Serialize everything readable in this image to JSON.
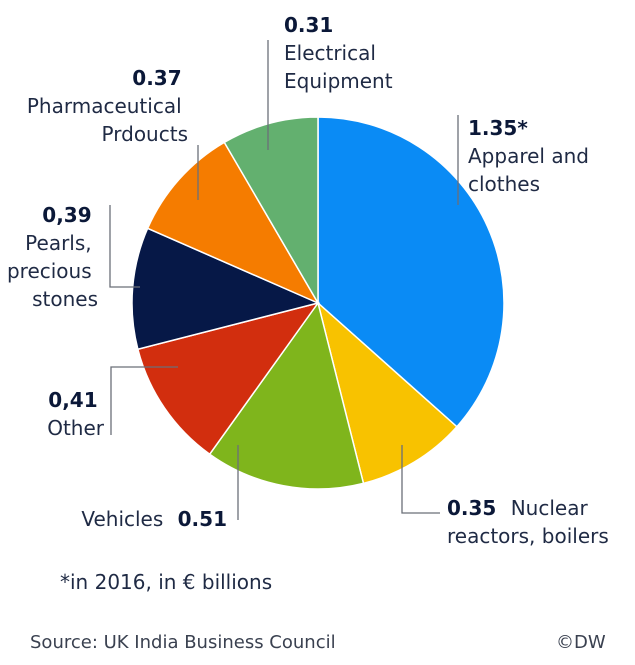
{
  "chart_data": {
    "type": "pie",
    "slices": [
      {
        "label_lines": [
          "Apparel and",
          "clothes"
        ],
        "value": 1.35,
        "value_text": "1.35*",
        "color": "#0a8bf5"
      },
      {
        "label_lines": [
          "Nuclear",
          "reactors, boilers"
        ],
        "value": 0.35,
        "value_text": "0.35",
        "color": "#f8c200"
      },
      {
        "label_lines": [
          "Vehicles"
        ],
        "value": 0.51,
        "value_text": "0.51",
        "color": "#7fb51c"
      },
      {
        "label_lines": [
          "Other"
        ],
        "value": 0.41,
        "value_text": "0,41",
        "color": "#d22e0e"
      },
      {
        "label_lines": [
          "Pearls,",
          "precious",
          "stones"
        ],
        "value": 0.39,
        "value_text": "0,39",
        "color": "#061847"
      },
      {
        "label_lines": [
          "Pharmaceutical",
          "Prdoucts"
        ],
        "value": 0.37,
        "value_text": "0.37",
        "color": "#f57c00"
      },
      {
        "label_lines": [
          "Electrical",
          "Equipment"
        ],
        "value": 0.31,
        "value_text": "0.31",
        "color": "#63b06f"
      }
    ]
  },
  "footnote": "*in 2016, in € billions",
  "source": "Source: UK India Business Council",
  "credit": "©DW"
}
